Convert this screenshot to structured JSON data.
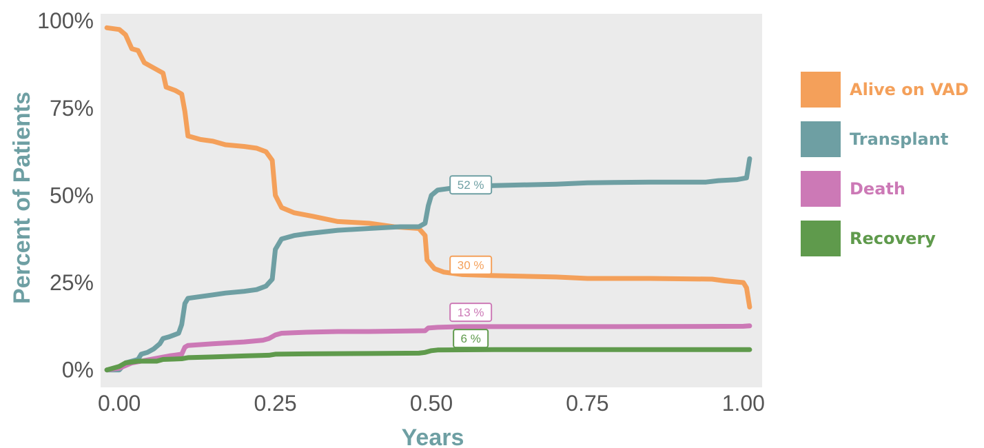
{
  "chart_data": {
    "type": "line",
    "title": "",
    "xlabel": "Years",
    "ylabel": "Percent of Patients",
    "xlim": [
      -0.03,
      1.03
    ],
    "ylim": [
      -0.05,
      1.02
    ],
    "x_ticks": [
      {
        "value": 0.0,
        "label": "0.00"
      },
      {
        "value": 0.25,
        "label": "0.25"
      },
      {
        "value": 0.5,
        "label": "0.50"
      },
      {
        "value": 0.75,
        "label": "0.75"
      },
      {
        "value": 1.0,
        "label": "1.00"
      }
    ],
    "y_ticks": [
      {
        "value": 0.0,
        "label": "0%"
      },
      {
        "value": 0.25,
        "label": "25%"
      },
      {
        "value": 0.5,
        "label": "50%"
      },
      {
        "value": 0.75,
        "label": "75%"
      },
      {
        "value": 1.0,
        "label": "100%"
      }
    ],
    "grid": false,
    "legend_position": "right",
    "plot_background": "#ebebeb",
    "series": [
      {
        "name": "Alive on VAD",
        "color": "#f4a05a",
        "label_text": "30 %",
        "label_at": [
          0.53,
          0.3
        ],
        "points": [
          [
            -0.02,
            0.98
          ],
          [
            0.0,
            0.975
          ],
          [
            0.01,
            0.96
          ],
          [
            0.02,
            0.92
          ],
          [
            0.03,
            0.915
          ],
          [
            0.04,
            0.88
          ],
          [
            0.05,
            0.87
          ],
          [
            0.06,
            0.86
          ],
          [
            0.07,
            0.85
          ],
          [
            0.075,
            0.81
          ],
          [
            0.09,
            0.8
          ],
          [
            0.1,
            0.79
          ],
          [
            0.105,
            0.74
          ],
          [
            0.11,
            0.67
          ],
          [
            0.13,
            0.66
          ],
          [
            0.15,
            0.655
          ],
          [
            0.17,
            0.645
          ],
          [
            0.2,
            0.64
          ],
          [
            0.22,
            0.635
          ],
          [
            0.235,
            0.625
          ],
          [
            0.245,
            0.6
          ],
          [
            0.25,
            0.5
          ],
          [
            0.26,
            0.465
          ],
          [
            0.28,
            0.45
          ],
          [
            0.31,
            0.44
          ],
          [
            0.35,
            0.425
          ],
          [
            0.4,
            0.42
          ],
          [
            0.44,
            0.41
          ],
          [
            0.48,
            0.405
          ],
          [
            0.49,
            0.385
          ],
          [
            0.493,
            0.315
          ],
          [
            0.505,
            0.29
          ],
          [
            0.52,
            0.28
          ],
          [
            0.55,
            0.273
          ],
          [
            0.6,
            0.27
          ],
          [
            0.7,
            0.266
          ],
          [
            0.75,
            0.262
          ],
          [
            0.85,
            0.262
          ],
          [
            0.95,
            0.26
          ],
          [
            0.97,
            0.255
          ],
          [
            1.0,
            0.25
          ],
          [
            1.005,
            0.235
          ],
          [
            1.01,
            0.18
          ]
        ]
      },
      {
        "name": "Transplant",
        "color": "#6e9fa3",
        "label_text": "52 %",
        "label_at": [
          0.53,
          0.53
        ],
        "points": [
          [
            -0.02,
            0.0
          ],
          [
            0.0,
            0.0
          ],
          [
            0.01,
            0.02
          ],
          [
            0.02,
            0.025
          ],
          [
            0.03,
            0.03
          ],
          [
            0.035,
            0.045
          ],
          [
            0.045,
            0.05
          ],
          [
            0.055,
            0.06
          ],
          [
            0.065,
            0.075
          ],
          [
            0.07,
            0.09
          ],
          [
            0.08,
            0.095
          ],
          [
            0.095,
            0.105
          ],
          [
            0.1,
            0.13
          ],
          [
            0.105,
            0.19
          ],
          [
            0.11,
            0.205
          ],
          [
            0.13,
            0.21
          ],
          [
            0.15,
            0.215
          ],
          [
            0.17,
            0.22
          ],
          [
            0.2,
            0.225
          ],
          [
            0.22,
            0.23
          ],
          [
            0.235,
            0.24
          ],
          [
            0.245,
            0.26
          ],
          [
            0.25,
            0.345
          ],
          [
            0.26,
            0.375
          ],
          [
            0.28,
            0.385
          ],
          [
            0.3,
            0.39
          ],
          [
            0.35,
            0.4
          ],
          [
            0.4,
            0.405
          ],
          [
            0.45,
            0.41
          ],
          [
            0.48,
            0.41
          ],
          [
            0.49,
            0.42
          ],
          [
            0.495,
            0.47
          ],
          [
            0.5,
            0.5
          ],
          [
            0.51,
            0.515
          ],
          [
            0.53,
            0.52
          ],
          [
            0.55,
            0.525
          ],
          [
            0.6,
            0.528
          ],
          [
            0.7,
            0.532
          ],
          [
            0.75,
            0.536
          ],
          [
            0.85,
            0.538
          ],
          [
            0.94,
            0.538
          ],
          [
            0.96,
            0.542
          ],
          [
            0.99,
            0.545
          ],
          [
            1.005,
            0.55
          ],
          [
            1.01,
            0.605
          ]
        ]
      },
      {
        "name": "Death",
        "color": "#cc79b6",
        "label_text": "13 %",
        "label_at": [
          0.53,
          0.165
        ],
        "points": [
          [
            -0.02,
            0.0
          ],
          [
            0.0,
            0.005
          ],
          [
            0.02,
            0.02
          ],
          [
            0.05,
            0.03
          ],
          [
            0.08,
            0.04
          ],
          [
            0.1,
            0.045
          ],
          [
            0.105,
            0.065
          ],
          [
            0.11,
            0.07
          ],
          [
            0.15,
            0.075
          ],
          [
            0.2,
            0.08
          ],
          [
            0.23,
            0.085
          ],
          [
            0.24,
            0.09
          ],
          [
            0.25,
            0.1
          ],
          [
            0.26,
            0.105
          ],
          [
            0.3,
            0.108
          ],
          [
            0.35,
            0.11
          ],
          [
            0.4,
            0.11
          ],
          [
            0.49,
            0.112
          ],
          [
            0.495,
            0.12
          ],
          [
            0.51,
            0.122
          ],
          [
            0.55,
            0.124
          ],
          [
            0.6,
            0.124
          ],
          [
            0.8,
            0.124
          ],
          [
            1.0,
            0.125
          ],
          [
            1.01,
            0.126
          ]
        ]
      },
      {
        "name": "Recovery",
        "color": "#5f9a4c",
        "label_text": "6 %",
        "label_at": [
          0.53,
          0.09
        ],
        "points": [
          [
            -0.02,
            0.0
          ],
          [
            0.0,
            0.01
          ],
          [
            0.01,
            0.02
          ],
          [
            0.03,
            0.025
          ],
          [
            0.06,
            0.025
          ],
          [
            0.07,
            0.03
          ],
          [
            0.1,
            0.032
          ],
          [
            0.11,
            0.035
          ],
          [
            0.15,
            0.037
          ],
          [
            0.2,
            0.04
          ],
          [
            0.24,
            0.042
          ],
          [
            0.25,
            0.045
          ],
          [
            0.3,
            0.046
          ],
          [
            0.4,
            0.047
          ],
          [
            0.48,
            0.048
          ],
          [
            0.49,
            0.05
          ],
          [
            0.5,
            0.055
          ],
          [
            0.51,
            0.057
          ],
          [
            0.6,
            0.058
          ],
          [
            0.8,
            0.058
          ],
          [
            1.0,
            0.058
          ],
          [
            1.01,
            0.058
          ]
        ]
      }
    ]
  }
}
